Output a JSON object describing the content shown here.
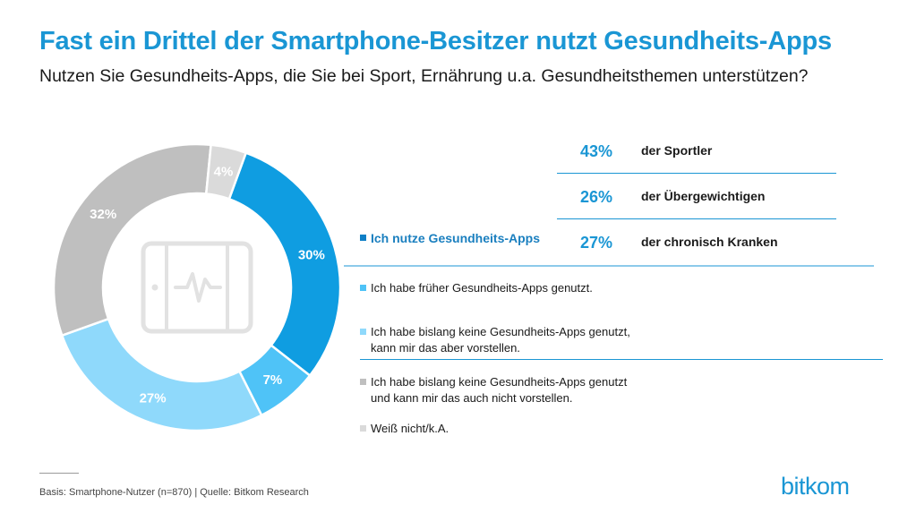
{
  "title": "Fast ein Drittel der Smartphone-Besitzer nutzt Gesundheits-Apps",
  "subtitle": "Nutzen Sie Gesundheits-Apps, die Sie bei Sport, Ernährung u.a. Gesundheitsthemen unterstützen?",
  "chart_data": {
    "type": "pie",
    "title": "Fast ein Drittel der Smartphone-Besitzer nutzt Gesundheits-Apps",
    "subtitle": "Nutzen Sie Gesundheits-Apps, die Sie bei Sport, Ernährung u.a. Gesundheitsthemen unterstützen?",
    "categories": [
      "Ich nutze Gesundheits-Apps",
      "Ich habe früher Gesundheits-Apps genutzt.",
      "Ich habe bislang keine Gesundheits-Apps genutzt, kann mir das aber vorstellen.",
      "Ich habe bislang keine Gesundheits-Apps genutzt und kann mir das auch nicht vorstellen.",
      "Weiß nicht/k.A."
    ],
    "values": [
      30,
      7,
      27,
      32,
      4
    ],
    "labels": [
      "30%",
      "7%",
      "27%",
      "32%",
      "4%"
    ],
    "colors": [
      "#0f9de1",
      "#4fc3f7",
      "#8fd9fb",
      "#bfbfbf",
      "#dadada"
    ],
    "label_colors": [
      "#ffffff",
      "#ffffff",
      "#ffffff",
      "#ffffff",
      "#ffffff"
    ],
    "donut": true,
    "center_icon": "tablet-heartbeat-icon",
    "legend_placement": "right"
  },
  "stats": [
    {
      "pct": "43%",
      "label": "der Sportler"
    },
    {
      "pct": "26%",
      "label": "der Übergewichtigen"
    },
    {
      "pct": "27%",
      "label": "der chronisch Kranken"
    }
  ],
  "legend": [
    {
      "lines": [
        "Ich nutze Gesundheits-Apps"
      ],
      "color": "#0f7fc6"
    },
    {
      "lines": [
        "Ich habe früher Gesundheits-Apps genutzt."
      ],
      "color": "#4fc3f7"
    },
    {
      "lines": [
        "Ich habe bislang keine Gesundheits-Apps genutzt,",
        "kann mir das aber vorstellen."
      ],
      "color": "#8fd9fb"
    },
    {
      "lines": [
        "Ich habe bislang keine Gesundheits-Apps genutzt",
        "und kann mir das auch nicht vorstellen."
      ],
      "color": "#bfbfbf"
    },
    {
      "lines": [
        "Weiß nicht/k.A."
      ],
      "color": "#dadada"
    }
  ],
  "footer": "Basis: Smartphone-Nutzer (n=870) | Quelle: Bitkom Research",
  "logo": "bitkom"
}
